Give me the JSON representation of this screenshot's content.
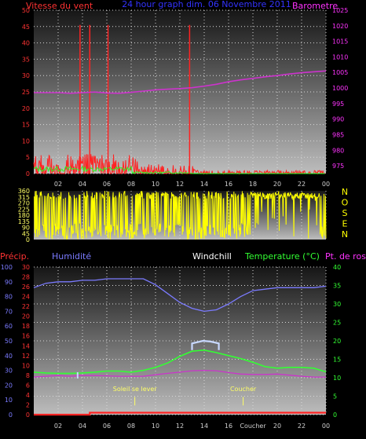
{
  "colors": {
    "background": "#000000",
    "plot_top": "#161616",
    "plot_bottom": "#bdbdbd",
    "wind_speed": "#ff2222",
    "wind_gust_avg": "#22ff22",
    "barometer": "#cc33cc",
    "direction": "#ffff00",
    "humidity": "#7b7bff",
    "windchill": "#ffffff",
    "temperature": "#33ff33",
    "dew_point": "#cc33cc",
    "precip": "#ff2222",
    "sun": "#ffff66",
    "title_blue": "#3333ff",
    "axis_right_top": "#ff33ff",
    "axis_temp": "#33ff33",
    "axis_humidity": "#7b7bff",
    "axis_precip": "#ff3333",
    "dir_letters": "#ffff00"
  },
  "panel_top": {
    "header_left": "Vitesse du vent",
    "header_center": "24 hour graph dim. 06 Novembre 2011",
    "header_right": "Barometre"
  },
  "panel_mid": {
    "compass_letters": [
      "N",
      "O",
      "S",
      "E",
      "N"
    ]
  },
  "panel_bottom": {
    "header_precip": "Précip.",
    "header_humidity": "Humidité",
    "header_windchill": "Windchill",
    "header_temperature": "Temperature (°C)",
    "header_dew": "Pt. de rosée",
    "sunrise_label": "Soleil se lever",
    "sunset_label": "Coucher"
  },
  "time_axis": {
    "ticks": [
      "02",
      "04",
      "06",
      "08",
      "10",
      "12",
      "14",
      "16",
      "18",
      "20",
      "22",
      "00"
    ],
    "bottom_ticks": [
      "02",
      "04",
      "06",
      "08",
      "10",
      "12",
      "14",
      "16",
      "Coucher",
      "20",
      "22",
      "00"
    ]
  },
  "chart_data": [
    {
      "type": "line",
      "panel": "wind_barometer",
      "title": "24 hour graph dim. 06 Novembre 2011",
      "x_unit": "hour",
      "xlim": [
        0,
        24
      ],
      "y_left_label": "Vitesse du vent",
      "ylim_left": [
        0,
        50
      ],
      "yticks_left": [
        "0",
        "5",
        "10",
        "15",
        "20",
        "25",
        "30",
        "35",
        "40",
        "45",
        "50"
      ],
      "y_right_label": "Barometre",
      "ylim_right": [
        972.5,
        1025
      ],
      "yticks_right": [
        "975",
        "980",
        "985",
        "990",
        "995",
        "1000",
        "1005",
        "1010",
        "1015",
        "1020",
        "1025"
      ],
      "grid": true,
      "series": [
        {
          "name": "Barometre",
          "axis": "right",
          "x": [
            0,
            1,
            2,
            3,
            4,
            5,
            6,
            7,
            8,
            9,
            10,
            11,
            12,
            13,
            14,
            15,
            16,
            17,
            18,
            19,
            20,
            21,
            22,
            23,
            24
          ],
          "values": [
            998.5,
            998.5,
            998.5,
            998.3,
            998.5,
            998.7,
            998.4,
            998.3,
            998.6,
            999.0,
            999.4,
            999.6,
            999.8,
            1000.1,
            1000.6,
            1001.2,
            1002.0,
            1002.6,
            1003.1,
            1003.6,
            1004.0,
            1004.5,
            1004.9,
            1005.2,
            1005.5
          ]
        },
        {
          "name": "Vitesse du vent (rafales)",
          "axis": "left",
          "x": [
            3.8,
            4.6,
            6.1,
            12.8
          ],
          "values": [
            45.5,
            45.5,
            45.5,
            45.5
          ]
        }
      ]
    },
    {
      "type": "line",
      "panel": "wind_direction",
      "xlim": [
        0,
        24
      ],
      "ylim": [
        0,
        360
      ],
      "yticks": [
        "0",
        "45",
        "90",
        "135",
        "180",
        "225",
        "270",
        "315",
        "360"
      ],
      "note_axis_right": "N O S E N"
    },
    {
      "type": "line",
      "panel": "temperature_humidity",
      "xlim": [
        0,
        24
      ],
      "ylim_temp": [
        0,
        40
      ],
      "yticks_temp": [
        "0",
        "5",
        "10",
        "15",
        "20",
        "25",
        "30",
        "35",
        "40"
      ],
      "ylim_humidity": [
        0,
        100
      ],
      "yticks_humidity": [
        "0",
        "10",
        "20",
        "30",
        "40",
        "50",
        "60",
        "70",
        "80",
        "90",
        "100"
      ],
      "ylim_precip": [
        0,
        30
      ],
      "yticks_precip": [
        "0",
        "2",
        "4",
        "6",
        "8",
        "10",
        "12",
        "14",
        "16",
        "18",
        "20",
        "22",
        "24",
        "26",
        "28",
        "30"
      ],
      "grid": true,
      "series": [
        {
          "name": "Humidité",
          "axis": "humidity",
          "x": [
            0,
            1,
            2,
            3,
            4,
            5,
            6,
            7,
            8,
            9,
            10,
            11,
            12,
            13,
            14,
            15,
            16,
            17,
            18,
            19,
            20,
            21,
            22,
            23,
            24
          ],
          "values": [
            86,
            89,
            90,
            90,
            91,
            91,
            92,
            92,
            92,
            92,
            88,
            82,
            76,
            72,
            70,
            71,
            75,
            80,
            84,
            85,
            86,
            86,
            86,
            86,
            87
          ]
        },
        {
          "name": "Temperature (°C)",
          "axis": "temp",
          "x": [
            0,
            1,
            2,
            3,
            4,
            5,
            6,
            7,
            8,
            9,
            10,
            11,
            12,
            13,
            14,
            15,
            16,
            17,
            18,
            19,
            20,
            21,
            22,
            23,
            24
          ],
          "values": [
            11.5,
            11.3,
            11.2,
            11.2,
            11.3,
            11.5,
            11.8,
            11.8,
            11.5,
            12.0,
            12.8,
            14.0,
            15.8,
            17.2,
            17.5,
            16.8,
            16.0,
            15.2,
            14.2,
            13.0,
            12.6,
            12.8,
            12.8,
            12.6,
            11.6
          ]
        },
        {
          "name": "Windchill",
          "axis": "temp",
          "x": [
            13.0,
            13.0,
            13.9,
            14.5,
            15.2,
            15.2
          ],
          "values": [
            17.5,
            19.3,
            20.0,
            19.8,
            19.3,
            17.5
          ]
        },
        {
          "name": "Pt. de rosée",
          "axis": "temp",
          "x": [
            0,
            1,
            2,
            3,
            4,
            5,
            6,
            7,
            8,
            9,
            10,
            11,
            12,
            13,
            14,
            15,
            16,
            17,
            18,
            19,
            20,
            21,
            22,
            23,
            24
          ],
          "values": [
            10.2,
            10.4,
            10.6,
            10.4,
            10.6,
            10.6,
            10.5,
            10.4,
            10.4,
            10.4,
            10.8,
            11.2,
            11.5,
            11.9,
            12.0,
            11.9,
            11.4,
            11.0,
            10.9,
            10.9,
            11.0,
            10.7,
            10.4,
            10.2,
            10.2
          ]
        },
        {
          "name": "Précip.",
          "axis": "precip",
          "x": [
            0,
            4.6,
            4.6,
            24
          ],
          "values": [
            0,
            0,
            0.4,
            0.4
          ]
        }
      ],
      "annotations": [
        {
          "label": "Soleil se lever",
          "x": 8.3
        },
        {
          "label": "Coucher",
          "x": 17.2
        }
      ]
    }
  ]
}
